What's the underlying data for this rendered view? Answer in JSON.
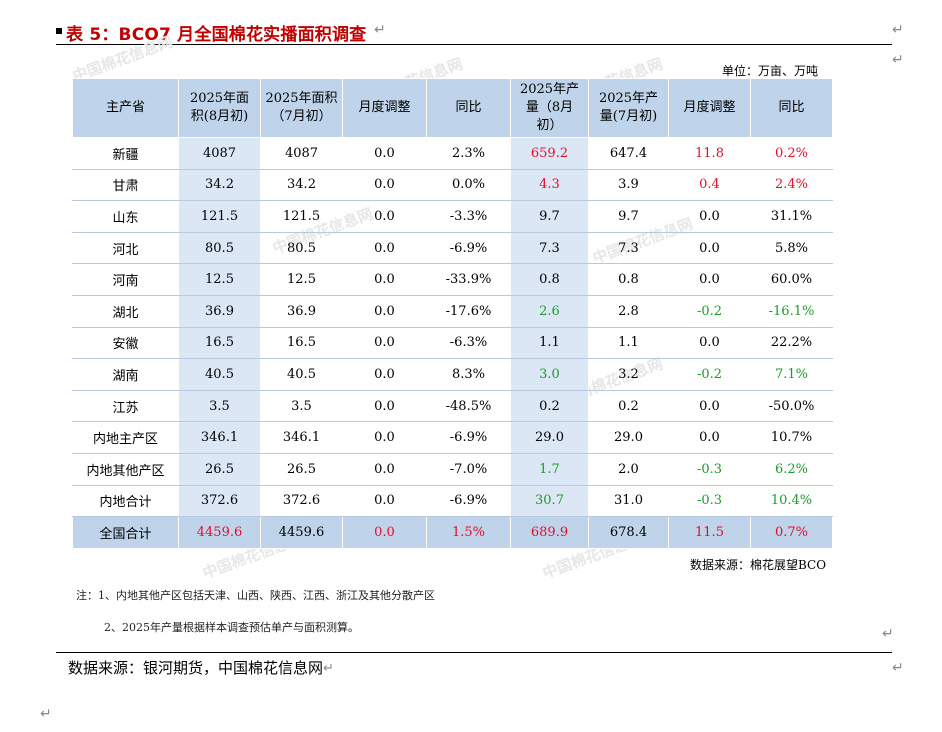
{
  "title": "表 5：BCO7 月全国棉花实播面积调查",
  "unit": "单位：万亩、万吨",
  "colors": {
    "title": "#c00000",
    "header_bg": "#bfd3ea",
    "shade_bg": "#dbe7f4",
    "up": "#e0102a",
    "down": "#1f9b2a"
  },
  "table": {
    "headers": [
      {
        "line1": "主产省",
        "line2": "",
        "line3": ""
      },
      {
        "line1": "2025年面",
        "line2": "积(8月初)",
        "line3": ""
      },
      {
        "line1": "2025年面积",
        "line2": "（7月初）",
        "line3": ""
      },
      {
        "line1": "月度调整",
        "line2": "",
        "line3": ""
      },
      {
        "line1": "同比",
        "line2": "",
        "line3": ""
      },
      {
        "line1": "2025年产",
        "line2": "量（8月",
        "line3": "初）"
      },
      {
        "line1": "2025年产",
        "line2": "量(7月初)",
        "line3": ""
      },
      {
        "line1": "月度调整",
        "line2": "",
        "line3": ""
      },
      {
        "line1": "同比",
        "line2": "",
        "line3": ""
      }
    ],
    "rows": [
      {
        "province": "新疆",
        "area_aug": "4087",
        "area_jul": "4087",
        "area_adj": "0.0",
        "area_yoy": "2.3%",
        "prod_aug": "659.2",
        "prod_jul": "647.4",
        "prod_adj": "11.8",
        "prod_yoy": "0.2%",
        "c_prod_aug": "red",
        "c_prod_adj": "red",
        "c_prod_yoy": "red"
      },
      {
        "province": "甘肃",
        "area_aug": "34.2",
        "area_jul": "34.2",
        "area_adj": "0.0",
        "area_yoy": "0.0%",
        "prod_aug": "4.3",
        "prod_jul": "3.9",
        "prod_adj": "0.4",
        "prod_yoy": "2.4%",
        "c_prod_aug": "red",
        "c_prod_adj": "red",
        "c_prod_yoy": "red"
      },
      {
        "province": "山东",
        "area_aug": "121.5",
        "area_jul": "121.5",
        "area_adj": "0.0",
        "area_yoy": "-3.3%",
        "prod_aug": "9.7",
        "prod_jul": "9.7",
        "prod_adj": "0.0",
        "prod_yoy": "31.1%",
        "c_prod_aug": "",
        "c_prod_adj": "",
        "c_prod_yoy": ""
      },
      {
        "province": "河北",
        "area_aug": "80.5",
        "area_jul": "80.5",
        "area_adj": "0.0",
        "area_yoy": "-6.9%",
        "prod_aug": "7.3",
        "prod_jul": "7.3",
        "prod_adj": "0.0",
        "prod_yoy": "5.8%",
        "c_prod_aug": "",
        "c_prod_adj": "",
        "c_prod_yoy": ""
      },
      {
        "province": "河南",
        "area_aug": "12.5",
        "area_jul": "12.5",
        "area_adj": "0.0",
        "area_yoy": "-33.9%",
        "prod_aug": "0.8",
        "prod_jul": "0.8",
        "prod_adj": "0.0",
        "prod_yoy": "60.0%",
        "c_prod_aug": "",
        "c_prod_adj": "",
        "c_prod_yoy": ""
      },
      {
        "province": "湖北",
        "area_aug": "36.9",
        "area_jul": "36.9",
        "area_adj": "0.0",
        "area_yoy": "-17.6%",
        "prod_aug": "2.6",
        "prod_jul": "2.8",
        "prod_adj": "-0.2",
        "prod_yoy": "-16.1%",
        "c_prod_aug": "green",
        "c_prod_adj": "green",
        "c_prod_yoy": "green"
      },
      {
        "province": "安徽",
        "area_aug": "16.5",
        "area_jul": "16.5",
        "area_adj": "0.0",
        "area_yoy": "-6.3%",
        "prod_aug": "1.1",
        "prod_jul": "1.1",
        "prod_adj": "0.0",
        "prod_yoy": "22.2%",
        "c_prod_aug": "",
        "c_prod_adj": "",
        "c_prod_yoy": ""
      },
      {
        "province": "湖南",
        "area_aug": "40.5",
        "area_jul": "40.5",
        "area_adj": "0.0",
        "area_yoy": "8.3%",
        "prod_aug": "3.0",
        "prod_jul": "3.2",
        "prod_adj": "-0.2",
        "prod_yoy": "7.1%",
        "c_prod_aug": "green",
        "c_prod_adj": "green",
        "c_prod_yoy": "green"
      },
      {
        "province": "江苏",
        "area_aug": "3.5",
        "area_jul": "3.5",
        "area_adj": "0.0",
        "area_yoy": "-48.5%",
        "prod_aug": "0.2",
        "prod_jul": "0.2",
        "prod_adj": "0.0",
        "prod_yoy": "-50.0%",
        "c_prod_aug": "",
        "c_prod_adj": "",
        "c_prod_yoy": ""
      },
      {
        "province": "内地主产区",
        "area_aug": "346.1",
        "area_jul": "346.1",
        "area_adj": "0.0",
        "area_yoy": "-6.9%",
        "prod_aug": "29.0",
        "prod_jul": "29.0",
        "prod_adj": "0.0",
        "prod_yoy": "10.7%",
        "c_prod_aug": "",
        "c_prod_adj": "",
        "c_prod_yoy": ""
      },
      {
        "province": "内地其他产区",
        "area_aug": "26.5",
        "area_jul": "26.5",
        "area_adj": "0.0",
        "area_yoy": "-7.0%",
        "prod_aug": "1.7",
        "prod_jul": "2.0",
        "prod_adj": "-0.3",
        "prod_yoy": "6.2%",
        "c_prod_aug": "green",
        "c_prod_adj": "green",
        "c_prod_yoy": "green"
      },
      {
        "province": "内地合计",
        "area_aug": "372.6",
        "area_jul": "372.6",
        "area_adj": "0.0",
        "area_yoy": "-6.9%",
        "prod_aug": "30.7",
        "prod_jul": "31.0",
        "prod_adj": "-0.3",
        "prod_yoy": "10.4%",
        "c_prod_aug": "green",
        "c_prod_adj": "green",
        "c_prod_yoy": "green"
      }
    ],
    "total": {
      "province": "全国合计",
      "area_aug": "4459.6",
      "area_jul": "4459.6",
      "area_adj": "0.0",
      "area_yoy": "1.5%",
      "prod_aug": "689.9",
      "prod_jul": "678.4",
      "prod_adj": "11.5",
      "prod_yoy": "0.7%"
    }
  },
  "source_right": "数据来源：棉花展望BCO",
  "notes": [
    "注：1、内地其他产区包括天津、山西、陕西、江西、浙江及其他分散产区",
    "2、2025年产量根据样本调查预估单产与面积测算。"
  ],
  "source_main": "数据来源：银河期货，中国棉花信息网",
  "return_mark": "↵"
}
